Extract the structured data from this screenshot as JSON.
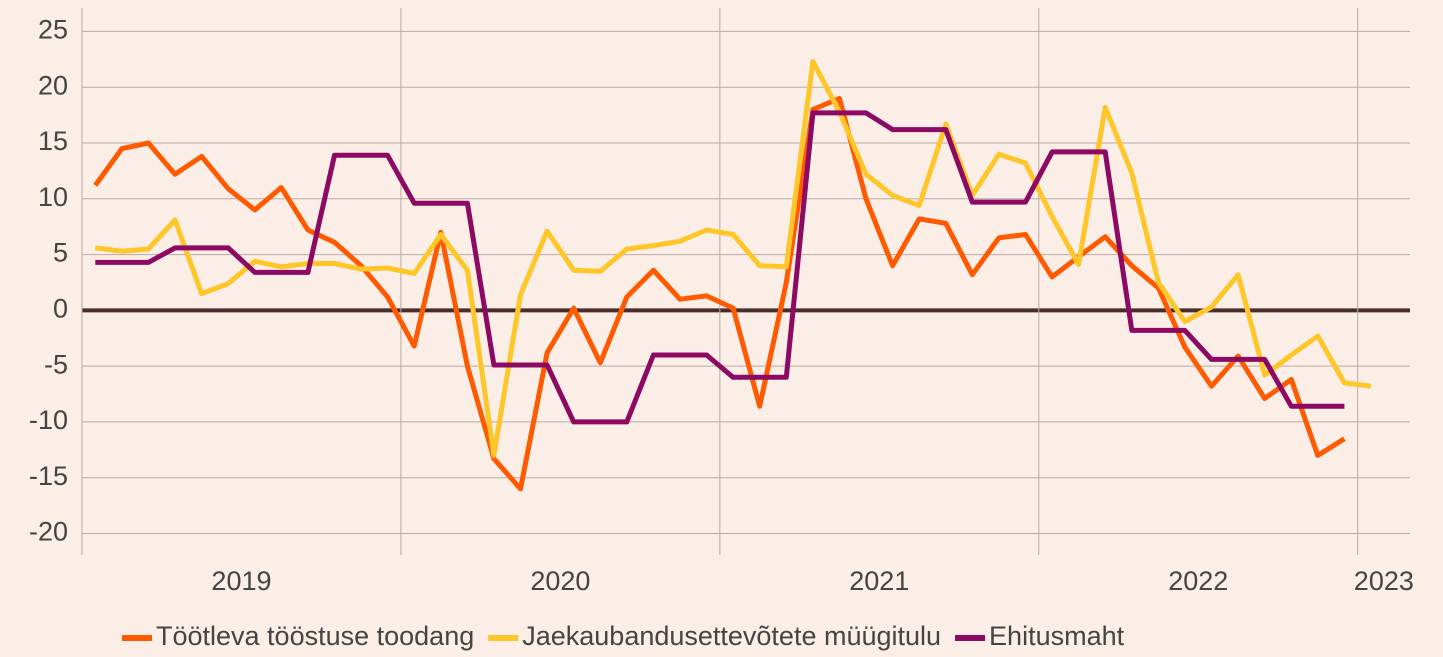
{
  "chart_data": {
    "type": "line",
    "categories": [
      null,
      null,
      null,
      null,
      null,
      null,
      null,
      null,
      null,
      null,
      null,
      null,
      null,
      null,
      null,
      null,
      null,
      null,
      null,
      null,
      null,
      null,
      null,
      null,
      null,
      null,
      null,
      null,
      null,
      null,
      null,
      null,
      null,
      null,
      null,
      null,
      null,
      null,
      null,
      null,
      null,
      null,
      null,
      null,
      null,
      null,
      null,
      null,
      null
    ],
    "series": [
      {
        "name": "Töötleva tööstuse toodang",
        "color": "#ff5a00",
        "values": [
          11.2,
          14.5,
          15,
          12.2,
          13.8,
          10.9,
          9,
          11,
          7.2,
          6.1,
          4,
          1.2,
          -3.2,
          7,
          -5,
          -13.3,
          -16,
          -3.8,
          0.2,
          -4.7,
          1.2,
          3.6,
          1,
          1.3,
          0.2,
          -8.6,
          2.5,
          18,
          19,
          10,
          4,
          8.2,
          7.8,
          3.2,
          6.5,
          6.8,
          3,
          4.8,
          6.6,
          4,
          2,
          -3.3,
          -6.8,
          -4.1,
          -7.9,
          -6.2,
          -13,
          -11.5,
          null
        ]
      },
      {
        "name": "Jaekaubandusettevõtete müügitulu",
        "color": "#ffc629",
        "values": [
          5.6,
          5.3,
          5.5,
          8.1,
          1.5,
          2.4,
          4.4,
          3.9,
          4.2,
          4.2,
          3.7,
          3.8,
          3.3,
          6.8,
          3.6,
          -13,
          1.4,
          7.1,
          3.6,
          3.5,
          5.5,
          5.8,
          6.2,
          7.2,
          6.8,
          4,
          3.9,
          22.3,
          17.8,
          12.2,
          10.3,
          9.4,
          16.7,
          10.3,
          14,
          13.2,
          8.4,
          4.1,
          18.2,
          12.3,
          2.5,
          -1,
          0.3,
          3.2,
          -5.8,
          -4,
          -2.3,
          -6.5,
          -6.8
        ]
      },
      {
        "name": "Ehitusmaht",
        "color": "#8c0a64",
        "values": [
          4.3,
          4.3,
          4.3,
          5.6,
          5.6,
          5.6,
          3.4,
          3.4,
          3.4,
          13.9,
          13.9,
          13.9,
          9.6,
          9.6,
          9.6,
          -4.9,
          -4.9,
          -4.9,
          -10,
          -10,
          -10,
          -4,
          -4,
          -4,
          -6,
          -6,
          -6,
          17.7,
          17.7,
          17.7,
          16.2,
          16.2,
          16.2,
          9.7,
          9.7,
          9.7,
          14.2,
          14.2,
          14.2,
          -1.8,
          -1.8,
          -1.8,
          -4.4,
          -4.4,
          -4.4,
          -8.6,
          -8.6,
          -8.6,
          null
        ]
      }
    ],
    "xlim": [
      2019,
      2023.164
    ],
    "xticks": [
      2019,
      2020,
      2021,
      2022,
      2023
    ],
    "ylim": [
      -21.3,
      27.1
    ],
    "yticks": [
      -20,
      -15,
      -10,
      -5,
      0,
      5,
      10,
      15,
      20,
      25
    ],
    "grid": true,
    "legend": "bottom"
  }
}
